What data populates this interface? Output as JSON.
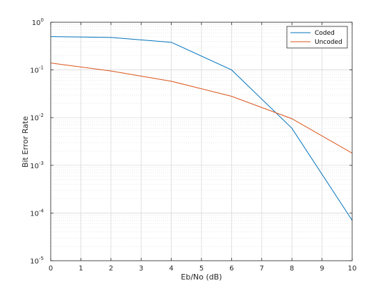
{
  "chart_data": {
    "type": "line",
    "title": "",
    "xlabel": "Eb/No (dB)",
    "ylabel": "Bit Error Rate",
    "xscale": "linear",
    "yscale": "log",
    "xlim": [
      0,
      10
    ],
    "ylim": [
      1e-05,
      1
    ],
    "x_ticks": [
      0,
      1,
      2,
      3,
      4,
      5,
      6,
      7,
      8,
      9,
      10
    ],
    "y_ticks": [
      {
        "base": "10",
        "exp": "0"
      },
      {
        "base": "10",
        "exp": "-1"
      },
      {
        "base": "10",
        "exp": "-2"
      },
      {
        "base": "10",
        "exp": "-3"
      },
      {
        "base": "10",
        "exp": "-4"
      },
      {
        "base": "10",
        "exp": "-5"
      }
    ],
    "grid": true,
    "minor_grid": true,
    "legend_position": "top-right",
    "series": [
      {
        "name": "Coded",
        "color": "#0072BD",
        "x": [
          0,
          2,
          4,
          6,
          8,
          10
        ],
        "y": [
          0.5,
          0.48,
          0.38,
          0.1,
          0.006,
          7e-05
        ]
      },
      {
        "name": "Uncoded",
        "color": "#D95319",
        "x": [
          0,
          2,
          4,
          6,
          8,
          10
        ],
        "y": [
          0.14,
          0.095,
          0.058,
          0.028,
          0.0095,
          0.0018
        ]
      }
    ]
  }
}
